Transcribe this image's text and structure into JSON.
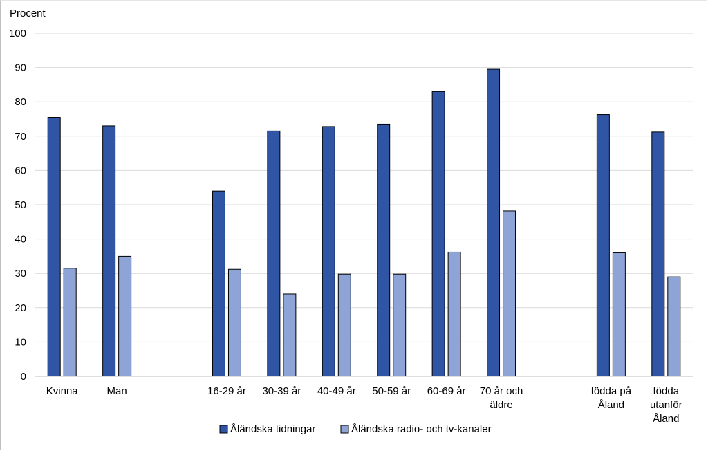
{
  "chart_data": {
    "type": "bar",
    "ylabel": "Procent",
    "ylim": [
      0,
      100
    ],
    "yticks": [
      0,
      10,
      20,
      30,
      40,
      50,
      60,
      70,
      80,
      90,
      100
    ],
    "grid": true,
    "legend_position": "bottom",
    "categories": [
      [
        "Kvinna"
      ],
      [
        "Man"
      ],
      [
        "16-29 år"
      ],
      [
        "30-39 år"
      ],
      [
        "40-49 år"
      ],
      [
        "50-59 år"
      ],
      [
        "60-69 år"
      ],
      [
        "70 år och",
        "äldre"
      ],
      [
        "födda på",
        "Åland"
      ],
      [
        "födda",
        "utanför",
        "Åland"
      ]
    ],
    "groups": [
      2,
      6,
      2
    ],
    "series": [
      {
        "name": "Åländska tidningar",
        "color": "#2f55a4",
        "values": [
          75.5,
          73,
          54,
          71.5,
          72.8,
          73.5,
          83,
          89.5,
          76.3,
          71.2
        ]
      },
      {
        "name": "Åländska radio- och tv-kanaler",
        "color": "#8fa4d6",
        "values": [
          31.5,
          35,
          31.2,
          24,
          29.8,
          29.8,
          36.2,
          48.2,
          36,
          29
        ]
      }
    ]
  }
}
